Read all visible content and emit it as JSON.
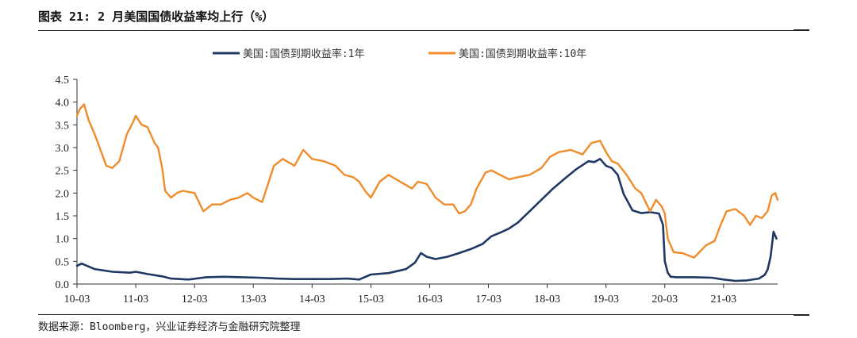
{
  "figure": {
    "title": "图表 21: 2 月美国国债收益率均上行（%）",
    "source": "数据来源：Bloomberg，兴业证券经济与金融研究院整理"
  },
  "chart_data": {
    "type": "line",
    "x_unit": "years since 2010-03 (x axis labelled YY-03)",
    "xlim": [
      0,
      11.92
    ],
    "ylim": [
      0,
      4.5
    ],
    "y_ticks": [
      0.0,
      0.5,
      1.0,
      1.5,
      2.0,
      2.5,
      3.0,
      3.5,
      4.0,
      4.5
    ],
    "y_tick_labels": [
      "0.0",
      "0.5",
      "1.0",
      "1.5",
      "2.0",
      "2.5",
      "3.0",
      "3.5",
      "4.0",
      "4.5"
    ],
    "x_ticks": [
      0,
      1,
      2,
      3,
      4,
      5,
      6,
      7,
      8,
      9,
      10,
      11
    ],
    "x_tick_labels": [
      "10-03",
      "11-03",
      "12-03",
      "13-03",
      "14-03",
      "15-03",
      "16-03",
      "17-03",
      "18-03",
      "19-03",
      "20-03",
      "21-03"
    ],
    "legend_position": "top-center",
    "series": [
      {
        "name": "美国:国债到期收益率:1年",
        "color": "#1f3864",
        "x": [
          0,
          0.08,
          0.3,
          0.6,
          0.9,
          1.0,
          1.2,
          1.45,
          1.6,
          1.9,
          2.2,
          2.5,
          2.8,
          3.1,
          3.4,
          3.7,
          4.0,
          4.3,
          4.6,
          4.8,
          5.0,
          5.3,
          5.6,
          5.75,
          5.85,
          5.95,
          6.1,
          6.3,
          6.5,
          6.7,
          6.9,
          7.05,
          7.2,
          7.35,
          7.5,
          7.7,
          7.9,
          8.1,
          8.3,
          8.5,
          8.7,
          8.8,
          8.9,
          9.0,
          9.1,
          9.2,
          9.3,
          9.45,
          9.6,
          9.75,
          9.9,
          9.97,
          10.0,
          10.05,
          10.1,
          10.2,
          10.5,
          10.8,
          11.0,
          11.2,
          11.4,
          11.6,
          11.7,
          11.75,
          11.8,
          11.85,
          11.9
        ],
        "y": [
          0.4,
          0.45,
          0.33,
          0.27,
          0.25,
          0.27,
          0.22,
          0.17,
          0.12,
          0.1,
          0.15,
          0.16,
          0.15,
          0.14,
          0.12,
          0.11,
          0.11,
          0.11,
          0.12,
          0.1,
          0.21,
          0.24,
          0.33,
          0.47,
          0.68,
          0.6,
          0.55,
          0.6,
          0.68,
          0.77,
          0.88,
          1.05,
          1.13,
          1.22,
          1.35,
          1.6,
          1.85,
          2.1,
          2.32,
          2.53,
          2.7,
          2.68,
          2.75,
          2.6,
          2.55,
          2.4,
          1.98,
          1.62,
          1.56,
          1.58,
          1.55,
          1.3,
          0.5,
          0.25,
          0.16,
          0.15,
          0.15,
          0.14,
          0.1,
          0.07,
          0.08,
          0.12,
          0.2,
          0.32,
          0.6,
          1.15,
          1.0
        ]
      },
      {
        "name": "美国:国债到期收益率:10年",
        "color": "#f08c2b",
        "x": [
          0,
          0.05,
          0.12,
          0.2,
          0.3,
          0.4,
          0.5,
          0.6,
          0.72,
          0.85,
          0.95,
          1.0,
          1.1,
          1.2,
          1.32,
          1.38,
          1.45,
          1.5,
          1.6,
          1.7,
          1.8,
          2.0,
          2.15,
          2.3,
          2.45,
          2.6,
          2.75,
          2.9,
          3.0,
          3.15,
          3.25,
          3.35,
          3.5,
          3.7,
          3.85,
          4.0,
          4.2,
          4.4,
          4.55,
          4.7,
          4.8,
          4.9,
          5.0,
          5.15,
          5.3,
          5.5,
          5.7,
          5.8,
          5.95,
          6.1,
          6.25,
          6.4,
          6.5,
          6.6,
          6.7,
          6.8,
          6.95,
          7.05,
          7.2,
          7.35,
          7.5,
          7.7,
          7.9,
          8.05,
          8.2,
          8.4,
          8.6,
          8.75,
          8.9,
          9.0,
          9.1,
          9.2,
          9.35,
          9.5,
          9.6,
          9.75,
          9.85,
          9.95,
          10.0,
          10.05,
          10.15,
          10.3,
          10.5,
          10.7,
          10.85,
          10.95,
          11.05,
          11.2,
          11.35,
          11.45,
          11.55,
          11.65,
          11.75,
          11.82,
          11.88,
          11.92
        ],
        "y": [
          3.7,
          3.85,
          3.95,
          3.6,
          3.3,
          2.95,
          2.6,
          2.55,
          2.7,
          3.3,
          3.55,
          3.7,
          3.5,
          3.45,
          3.1,
          3.0,
          2.55,
          2.05,
          1.9,
          2.0,
          2.05,
          2.0,
          1.6,
          1.75,
          1.75,
          1.85,
          1.9,
          2.0,
          1.9,
          1.8,
          2.2,
          2.6,
          2.75,
          2.6,
          2.95,
          2.75,
          2.7,
          2.6,
          2.4,
          2.35,
          2.25,
          2.05,
          1.9,
          2.25,
          2.4,
          2.25,
          2.1,
          2.25,
          2.2,
          1.9,
          1.75,
          1.75,
          1.55,
          1.6,
          1.75,
          2.1,
          2.45,
          2.5,
          2.4,
          2.3,
          2.35,
          2.4,
          2.55,
          2.8,
          2.9,
          2.95,
          2.85,
          3.1,
          3.15,
          2.9,
          2.7,
          2.65,
          2.4,
          2.1,
          2.0,
          1.6,
          1.85,
          1.7,
          1.55,
          1.0,
          0.7,
          0.68,
          0.58,
          0.85,
          0.95,
          1.3,
          1.6,
          1.65,
          1.5,
          1.3,
          1.5,
          1.45,
          1.6,
          1.95,
          2.0,
          1.85
        ]
      }
    ]
  }
}
